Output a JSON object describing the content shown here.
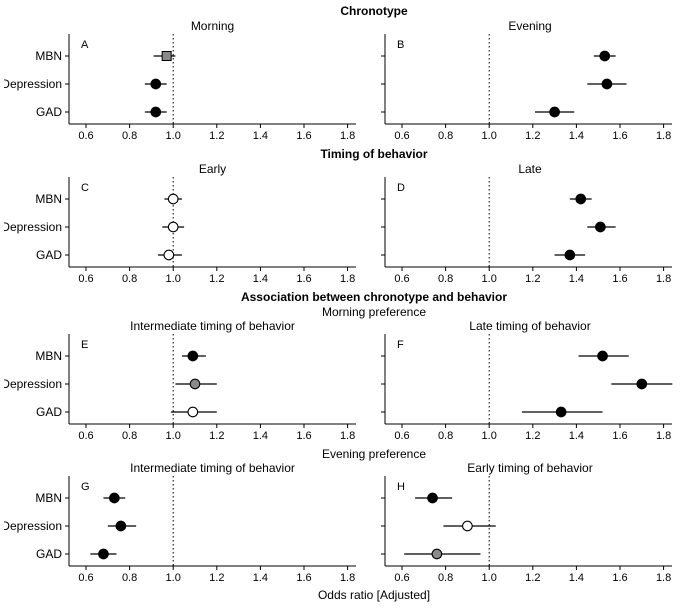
{
  "chart_data": {
    "type": "scatter",
    "subtype": "forest-plot",
    "xlabel": "Odds ratio [Adjusted]",
    "x_ticks": [
      "0.6",
      "0.8",
      "1.0",
      "1.2",
      "1.4",
      "1.6",
      "1.8"
    ],
    "x_range": [
      0.52,
      1.88
    ],
    "ref_line": 1.0,
    "grid": "off",
    "categories": [
      "MBN",
      "Depression",
      "GAD"
    ],
    "colors": {
      "black": "#000000",
      "gray": "#8a8a8a",
      "white": "#ffffff"
    },
    "rows": [
      {
        "group_title": "Chronotype",
        "subtitle": ""
      },
      {
        "group_title": "Timing of behavior",
        "subtitle": ""
      },
      {
        "group_title": "Association between chronotype and behavior",
        "subtitle": "Morning preference"
      },
      {
        "group_title": "",
        "subtitle": "Evening preference"
      }
    ],
    "panels": [
      {
        "letter": "A",
        "row": 0,
        "side": "left",
        "title": "Morning",
        "points": [
          {
            "category": "MBN",
            "or": 0.97,
            "ci": [
              0.91,
              1.01
            ],
            "marker": "square",
            "fill": "gray"
          },
          {
            "category": "Depression",
            "or": 0.92,
            "ci": [
              0.87,
              0.97
            ],
            "marker": "circle",
            "fill": "black"
          },
          {
            "category": "GAD",
            "or": 0.92,
            "ci": [
              0.87,
              0.97
            ],
            "marker": "circle",
            "fill": "black"
          }
        ]
      },
      {
        "letter": "B",
        "row": 0,
        "side": "right",
        "title": "Evening",
        "points": [
          {
            "category": "MBN",
            "or": 1.53,
            "ci": [
              1.48,
              1.58
            ],
            "marker": "circle",
            "fill": "black"
          },
          {
            "category": "Depression",
            "or": 1.54,
            "ci": [
              1.45,
              1.63
            ],
            "marker": "circle",
            "fill": "black"
          },
          {
            "category": "GAD",
            "or": 1.3,
            "ci": [
              1.21,
              1.39
            ],
            "marker": "circle",
            "fill": "black"
          }
        ]
      },
      {
        "letter": "C",
        "row": 1,
        "side": "left",
        "title": "Early",
        "points": [
          {
            "category": "MBN",
            "or": 1.0,
            "ci": [
              0.96,
              1.04
            ],
            "marker": "circle",
            "fill": "white"
          },
          {
            "category": "Depression",
            "or": 1.0,
            "ci": [
              0.95,
              1.05
            ],
            "marker": "circle",
            "fill": "white"
          },
          {
            "category": "GAD",
            "or": 0.98,
            "ci": [
              0.93,
              1.04
            ],
            "marker": "circle",
            "fill": "white"
          }
        ]
      },
      {
        "letter": "D",
        "row": 1,
        "side": "right",
        "title": "Late",
        "points": [
          {
            "category": "MBN",
            "or": 1.42,
            "ci": [
              1.37,
              1.47
            ],
            "marker": "circle",
            "fill": "black"
          },
          {
            "category": "Depression",
            "or": 1.51,
            "ci": [
              1.45,
              1.58
            ],
            "marker": "circle",
            "fill": "black"
          },
          {
            "category": "GAD",
            "or": 1.37,
            "ci": [
              1.3,
              1.44
            ],
            "marker": "circle",
            "fill": "black"
          }
        ]
      },
      {
        "letter": "E",
        "row": 2,
        "side": "left",
        "title": "Intermediate timing of behavior",
        "points": [
          {
            "category": "MBN",
            "or": 1.09,
            "ci": [
              1.04,
              1.15
            ],
            "marker": "circle",
            "fill": "black"
          },
          {
            "category": "Depression",
            "or": 1.1,
            "ci": [
              1.01,
              1.2
            ],
            "marker": "circle",
            "fill": "gray"
          },
          {
            "category": "GAD",
            "or": 1.09,
            "ci": [
              0.99,
              1.2
            ],
            "marker": "circle",
            "fill": "white"
          }
        ]
      },
      {
        "letter": "F",
        "row": 2,
        "side": "right",
        "title": "Late timing of behavior",
        "points": [
          {
            "category": "MBN",
            "or": 1.52,
            "ci": [
              1.41,
              1.64
            ],
            "marker": "circle",
            "fill": "black"
          },
          {
            "category": "Depression",
            "or": 1.7,
            "ci": [
              1.56,
              1.84
            ],
            "marker": "circle",
            "fill": "black"
          },
          {
            "category": "GAD",
            "or": 1.33,
            "ci": [
              1.15,
              1.52
            ],
            "marker": "circle",
            "fill": "black"
          }
        ]
      },
      {
        "letter": "G",
        "row": 3,
        "side": "left",
        "title": "Intermediate timing of behavior",
        "points": [
          {
            "category": "MBN",
            "or": 0.73,
            "ci": [
              0.68,
              0.78
            ],
            "marker": "circle",
            "fill": "black"
          },
          {
            "category": "Depression",
            "or": 0.76,
            "ci": [
              0.7,
              0.83
            ],
            "marker": "circle",
            "fill": "black"
          },
          {
            "category": "GAD",
            "or": 0.68,
            "ci": [
              0.62,
              0.74
            ],
            "marker": "circle",
            "fill": "black"
          }
        ]
      },
      {
        "letter": "H",
        "row": 3,
        "side": "right",
        "title": "Early timing of behavior",
        "points": [
          {
            "category": "MBN",
            "or": 0.74,
            "ci": [
              0.66,
              0.83
            ],
            "marker": "circle",
            "fill": "black"
          },
          {
            "category": "Depression",
            "or": 0.9,
            "ci": [
              0.79,
              1.03
            ],
            "marker": "circle",
            "fill": "white"
          },
          {
            "category": "GAD",
            "or": 0.76,
            "ci": [
              0.61,
              0.96
            ],
            "marker": "circle",
            "fill": "gray"
          }
        ]
      }
    ]
  }
}
